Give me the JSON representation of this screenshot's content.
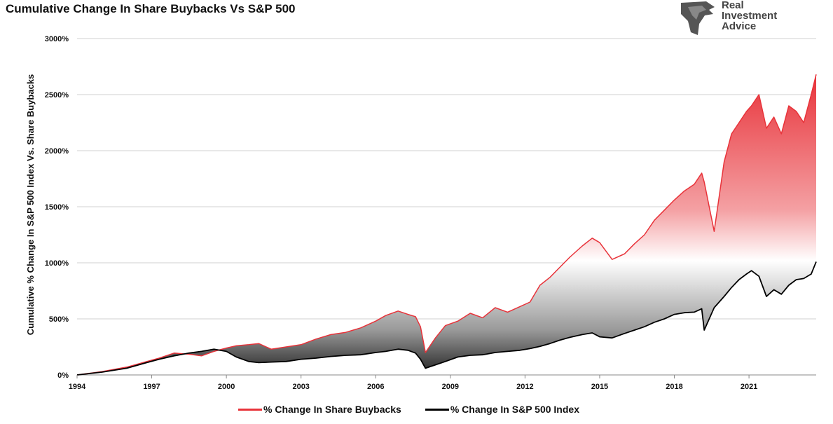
{
  "title": "Cumulative Change In Share Buybacks Vs S&P 500",
  "logo": {
    "line1": "Real",
    "line2": "Investment",
    "line3": "Advice"
  },
  "colors": {
    "buybacks": "#e8333a",
    "sp500": "#000000",
    "grid": "#d0d0d0",
    "axis_text": "#111111"
  },
  "chart_data": {
    "type": "area",
    "title": "Cumulative Change In Share Buybacks Vs S&P 500",
    "xlabel": "",
    "ylabel": "Cumulative % Change In S&P 500 Index Vs. Share Buybacks",
    "xlim": [
      1994,
      2023.7
    ],
    "ylim": [
      0,
      3000
    ],
    "yticks": [
      0,
      500,
      1000,
      1500,
      2000,
      2500,
      3000
    ],
    "ytick_labels": [
      "0%",
      "500%",
      "1000%",
      "1500%",
      "2000%",
      "2500%",
      "3000%"
    ],
    "xticks": [
      1994,
      1997,
      2000,
      2003,
      2006,
      2009,
      2012,
      2015,
      2018,
      2021
    ],
    "xtick_labels": [
      "1994",
      "1997",
      "2000",
      "2003",
      "2006",
      "2009",
      "2012",
      "2015",
      "2018",
      "2021"
    ],
    "grid": true,
    "legend_position": "bottom",
    "series": [
      {
        "name": "% Change In Share Buybacks",
        "x": [
          1994.0,
          1995.0,
          1996.0,
          1996.8,
          1997.3,
          1997.9,
          1998.5,
          1999.0,
          1999.5,
          2000.0,
          2000.4,
          2000.9,
          2001.3,
          2001.8,
          2002.4,
          2003.0,
          2003.6,
          2004.2,
          2004.8,
          2005.4,
          2006.0,
          2006.4,
          2006.9,
          2007.3,
          2007.6,
          2007.8,
          2008.0,
          2008.4,
          2008.8,
          2009.3,
          2009.8,
          2010.3,
          2010.8,
          2011.3,
          2011.8,
          2012.2,
          2012.6,
          2013.0,
          2013.4,
          2013.8,
          2014.3,
          2014.7,
          2015.0,
          2015.5,
          2016.0,
          2016.4,
          2016.8,
          2017.2,
          2017.6,
          2018.0,
          2018.4,
          2018.8,
          2019.1,
          2019.2,
          2019.6,
          2020.0,
          2020.3,
          2020.6,
          2020.9,
          2021.1,
          2021.4,
          2021.7,
          2022.0,
          2022.3,
          2022.6,
          2022.9,
          2023.2,
          2023.5,
          2023.7
        ],
        "values": [
          0,
          30,
          70,
          120,
          150,
          195,
          185,
          170,
          210,
          240,
          260,
          270,
          280,
          230,
          250,
          270,
          320,
          360,
          380,
          420,
          480,
          530,
          570,
          540,
          520,
          430,
          200,
          330,
          440,
          480,
          550,
          510,
          600,
          560,
          610,
          650,
          800,
          870,
          960,
          1050,
          1150,
          1220,
          1180,
          1030,
          1080,
          1170,
          1250,
          1380,
          1470,
          1560,
          1640,
          1700,
          1800,
          1720,
          1280,
          1900,
          2150,
          2250,
          2350,
          2400,
          2500,
          2200,
          2300,
          2150,
          2400,
          2350,
          2250,
          2500,
          2680
        ]
      },
      {
        "name": "% Change In S&P 500 Index",
        "x": [
          1994.0,
          1995.0,
          1996.0,
          1996.8,
          1997.3,
          1997.9,
          1998.5,
          1999.0,
          1999.5,
          2000.0,
          2000.4,
          2000.9,
          2001.3,
          2001.8,
          2002.4,
          2003.0,
          2003.6,
          2004.2,
          2004.8,
          2005.4,
          2006.0,
          2006.4,
          2006.9,
          2007.3,
          2007.6,
          2007.8,
          2008.0,
          2008.4,
          2008.8,
          2009.3,
          2009.8,
          2010.3,
          2010.8,
          2011.3,
          2011.8,
          2012.2,
          2012.6,
          2013.0,
          2013.4,
          2013.8,
          2014.3,
          2014.7,
          2015.0,
          2015.5,
          2016.0,
          2016.4,
          2016.8,
          2017.2,
          2017.6,
          2018.0,
          2018.4,
          2018.8,
          2019.1,
          2019.2,
          2019.6,
          2020.0,
          2020.3,
          2020.6,
          2020.9,
          2021.1,
          2021.4,
          2021.7,
          2022.0,
          2022.3,
          2022.6,
          2022.9,
          2023.2,
          2023.5,
          2023.7
        ],
        "values": [
          0,
          25,
          60,
          110,
          140,
          170,
          195,
          210,
          230,
          210,
          160,
          120,
          110,
          115,
          120,
          140,
          150,
          165,
          175,
          180,
          200,
          210,
          230,
          220,
          195,
          140,
          60,
          90,
          120,
          160,
          175,
          180,
          200,
          210,
          220,
          235,
          255,
          280,
          310,
          335,
          360,
          375,
          340,
          330,
          370,
          400,
          430,
          470,
          500,
          540,
          555,
          560,
          590,
          400,
          600,
          700,
          780,
          850,
          900,
          930,
          880,
          700,
          760,
          720,
          800,
          850,
          860,
          900,
          1010
        ]
      }
    ]
  },
  "legend": [
    {
      "label": "% Change In Share Buybacks",
      "color": "#e8333a"
    },
    {
      "label": "% Change In S&P 500 Index",
      "color": "#000000"
    }
  ]
}
